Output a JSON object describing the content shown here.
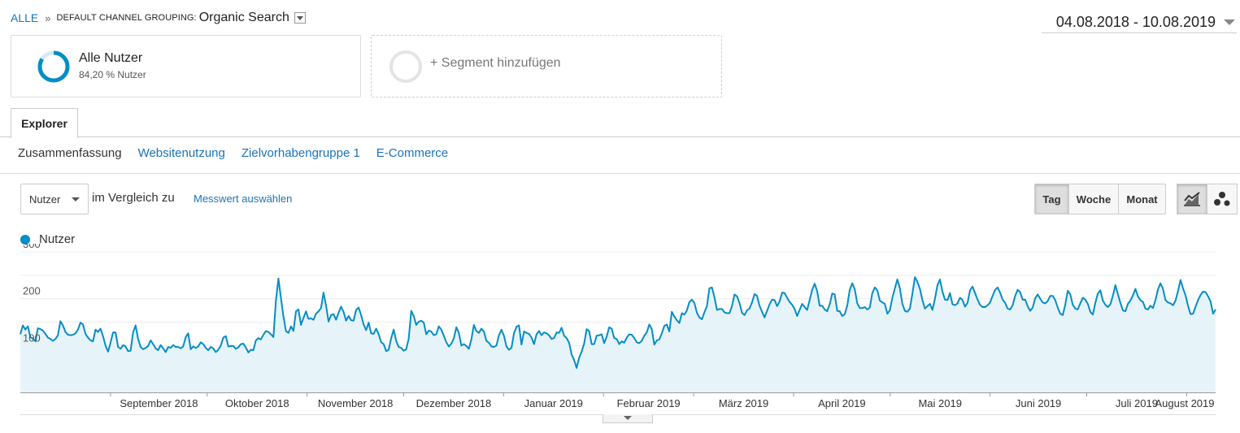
{
  "breadcrumb": {
    "all": "ALLE",
    "separator": "»",
    "dimension": "DEFAULT CHANNEL GROUPING:",
    "value": "Organic Search"
  },
  "date_range": "04.08.2018 - 10.08.2019",
  "segments": {
    "all_users": {
      "name": "Alle Nutzer",
      "percent": "84,20 % Nutzer",
      "fraction": 0.842
    },
    "add_label": "+ Segment hinzufügen"
  },
  "tabs": {
    "explorer": "Explorer"
  },
  "subtabs": [
    "Zusammenfassung",
    "Websitenutzung",
    "Zielvorhabengruppe 1",
    "E-Commerce"
  ],
  "controls": {
    "metric": "Nutzer",
    "compare_label": "im Vergleich zu",
    "pick_metric": "Messwert auswählen",
    "granularity": [
      "Tag",
      "Woche",
      "Monat"
    ],
    "granularity_active": "Tag"
  },
  "icons": {
    "line_chart": "line-chart-icon",
    "motion_chart": "motion-chart-icon",
    "dropdown": "chevron-down-icon"
  },
  "colors": {
    "series": "#058dc7",
    "area": "#e6f4fa",
    "link": "#1a73b8"
  },
  "legend": {
    "label": "Nutzer"
  },
  "chart_data": {
    "type": "area",
    "x_start": "2018-08-04",
    "x_end": "2019-08-10",
    "ylim": [
      0,
      300
    ],
    "yticks": [
      100,
      200,
      300
    ],
    "month_labels": [
      "September 2018",
      "Oktober 2018",
      "November 2018",
      "Dezember 2018",
      "Januar 2019",
      "Februar 2019",
      "März 2019",
      "April 2019",
      "Mai 2019",
      "Juni 2019",
      "Juli 2019",
      "August 2019"
    ],
    "series": [
      {
        "name": "Nutzer",
        "values": [
          124,
          143,
          134,
          141,
          118,
          115,
          109,
          137,
          135,
          132,
          125,
          117,
          114,
          110,
          114,
          122,
          152,
          143,
          129,
          123,
          122,
          123,
          126,
          134,
          149,
          145,
          125,
          117,
          111,
          109,
          134,
          129,
          136,
          120,
          100,
          87,
          106,
          128,
          128,
          97,
          93,
          101,
          98,
          88,
          89,
          128,
          143,
          114,
          97,
          92,
          95,
          99,
          111,
          103,
          94,
          90,
          101,
          94,
          86,
          97,
          95,
          101,
          97,
          97,
          94,
          98,
          118,
          126,
          92,
          98,
          95,
          98,
          107,
          103,
          95,
          90,
          97,
          94,
          86,
          91,
          100,
          117,
          120,
          98,
          99,
          99,
          93,
          96,
          103,
          104,
          96,
          85,
          91,
          90,
          111,
          116,
          113,
          123,
          131,
          129,
          124,
          118,
          196,
          243,
          202,
          162,
          131,
          127,
          141,
          131,
          173,
          177,
          144,
          159,
          173,
          157,
          158,
          155,
          168,
          173,
          180,
          213,
          186,
          151,
          165,
          167,
          155,
          170,
          183,
          172,
          153,
          163,
          154,
          153,
          176,
          181,
          165,
          145,
          133,
          149,
          126,
          125,
          136,
          124,
          107,
          103,
          88,
          91,
          116,
          134,
          110,
          97,
          95,
          89,
          92,
          115,
          174,
          163,
          144,
          151,
          153,
          149,
          124,
          132,
          130,
          122,
          124,
          141,
          134,
          121,
          107,
          98,
          104,
          115,
          139,
          127,
          100,
          103,
          99,
          93,
          113,
          144,
          131,
          127,
          136,
          130,
          110,
          106,
          98,
          97,
          100,
          122,
          134,
          121,
          98,
          91,
          95,
          126,
          140,
          143,
          102,
          130,
          127,
          125,
          117,
          103,
          124,
          131,
          122,
          128,
          126,
          122,
          114,
          116,
          128,
          127,
          138,
          121,
          116,
          106,
          81,
          69,
          52,
          74,
          87,
          104,
          135,
          131,
          103,
          103,
          121,
          122,
          124,
          105,
          119,
          139,
          136,
          116,
          114,
          103,
          109,
          106,
          117,
          124,
          123,
          116,
          107,
          105,
          110,
          121,
          128,
          145,
          135,
          102,
          111,
          113,
          126,
          142,
          145,
          130,
          172,
          162,
          154,
          148,
          169,
          166,
          175,
          193,
          198,
          191,
          170,
          160,
          156,
          171,
          184,
          222,
          224,
          203,
          176,
          178,
          178,
          171,
          169,
          169,
          184,
          209,
          205,
          191,
          170,
          165,
          175,
          179,
          192,
          210,
          206,
          185,
          172,
          160,
          174,
          188,
          198,
          197,
          184,
          194,
          213,
          212,
          202,
          193,
          187,
          178,
          163,
          176,
          189,
          182,
          176,
          197,
          219,
          232,
          216,
          185,
          185,
          177,
          173,
          188,
          211,
          209,
          174,
          173,
          163,
          167,
          185,
          219,
          233,
          220,
          190,
          180,
          180,
          182,
          177,
          181,
          212,
          224,
          218,
          196,
          192,
          189,
          168,
          175,
          202,
          222,
          241,
          222,
          189,
          174,
          172,
          179,
          211,
          246,
          236,
          221,
          197,
          179,
          184,
          189,
          176,
          200,
          229,
          241,
          215,
          198,
          197,
          212,
          188,
          186,
          190,
          202,
          197,
          183,
          191,
          218,
          226,
          212,
          198,
          187,
          182,
          182,
          186,
          192,
          206,
          219,
          224,
          213,
          198,
          191,
          179,
          177,
          186,
          206,
          219,
          214,
          198,
          198,
          184,
          174,
          181,
          201,
          209,
          200,
          192,
          190,
          195,
          206,
          206,
          197,
          181,
          168,
          165,
          187,
          217,
          209,
          187,
          179,
          177,
          190,
          202,
          198,
          189,
          172,
          166,
          191,
          211,
          218,
          196,
          187,
          182,
          188,
          206,
          229,
          210,
          191,
          175,
          173,
          189,
          196,
          207,
          221,
          205,
          197,
          193,
          179,
          177,
          185,
          180,
          197,
          220,
          233,
          221,
          197,
          192,
          190,
          186,
          196,
          216,
          240,
          222,
          207,
          185,
          167,
          168,
          183,
          197,
          208,
          215,
          214,
          205,
          194,
          168,
          177
        ]
      }
    ]
  }
}
